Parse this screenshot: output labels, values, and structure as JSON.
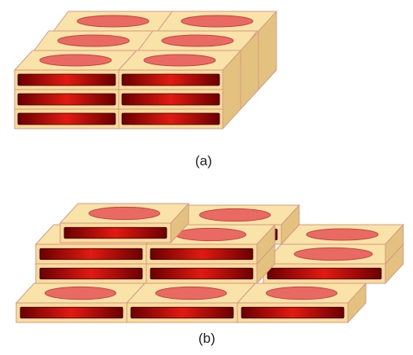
{
  "captions": {
    "a": "(a)",
    "b": "(b)"
  },
  "colors": {
    "top": "#f9e3a8",
    "front": "#f7dc9c",
    "side": "#e2c27e",
    "edge": "#d79a86",
    "oval": "#e96a63",
    "ovalStroke": "#c0443e",
    "barDark": "#6a0000",
    "barMid": "#e01a12"
  }
}
